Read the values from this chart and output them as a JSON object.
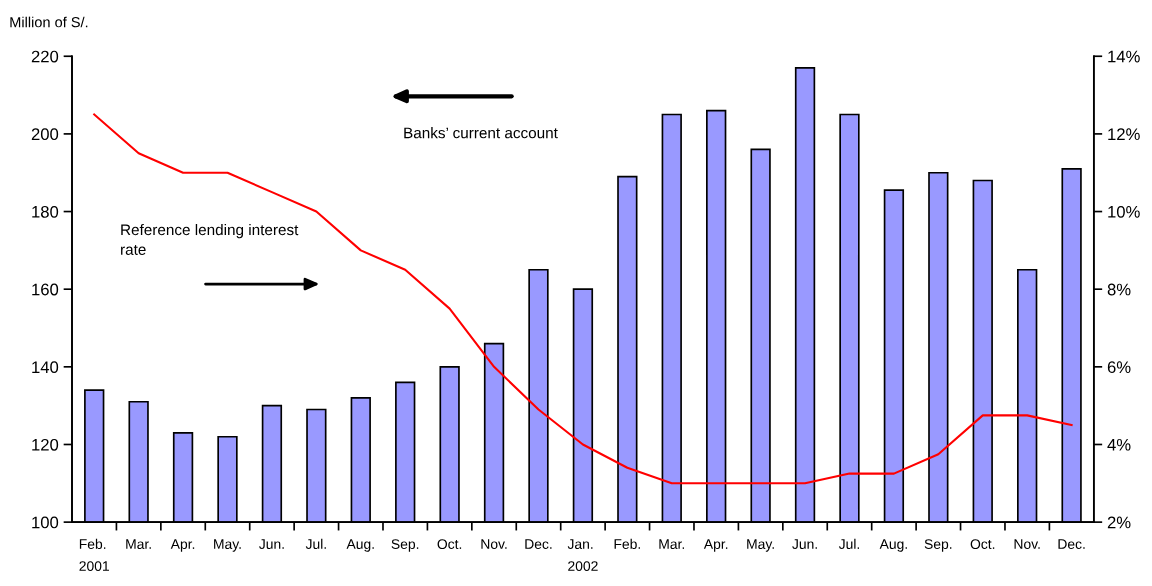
{
  "chart_data": {
    "type": "bar",
    "ylabel": "Million of S/.",
    "categories": [
      "Feb.\n2001",
      "Mar.",
      "Apr.",
      "May.",
      "Jun.",
      "Jul.",
      "Aug.",
      "Sep.",
      "Oct.",
      "Nov.",
      "Dec.",
      "Jan.\n2002",
      "Feb.",
      "Mar.",
      "Apr.",
      "May.",
      "Jun.",
      "Jul.",
      "Aug.",
      "Sep.",
      "Oct.",
      "Nov.",
      "Dec."
    ],
    "series": [
      {
        "color": "#9999ff",
        "values": [
          134,
          131,
          123,
          122,
          130,
          129,
          132,
          136,
          140,
          146,
          165,
          160,
          189,
          205,
          206,
          196,
          217,
          205,
          185.5,
          190,
          188,
          165,
          191
        ]
      },
      {
        "type": "line",
        "axis": "y2",
        "color": "#ff0000",
        "values": [
          12.5,
          11.5,
          11,
          11,
          10.5,
          10,
          9,
          8.5,
          7.5,
          6,
          4.9,
          4,
          3.4,
          3,
          3,
          3,
          3,
          3.25,
          3.25,
          3.75,
          4.75,
          4.75,
          4.5
        ]
      }
    ],
    "ylim": [
      100,
      220
    ],
    "yticks": [
      100,
      120,
      140,
      160,
      180,
      200,
      220
    ],
    "y2lim": [
      2,
      14
    ],
    "y2ticks": [
      {
        "value": 2,
        "label": "2%"
      },
      {
        "value": 4,
        "label": "4%"
      },
      {
        "value": 6,
        "label": "6%"
      },
      {
        "value": 8,
        "label": "8%"
      },
      {
        "value": 10,
        "label": "10%"
      },
      {
        "value": 12,
        "label": "12%"
      },
      {
        "value": 14,
        "label": "14%"
      }
    ],
    "annotations": [
      "Banks’ current account",
      "Reference lending interest\nrate"
    ],
    "grid": false,
    "legend": false,
    "marker": "none",
    "line_style": "solid"
  }
}
